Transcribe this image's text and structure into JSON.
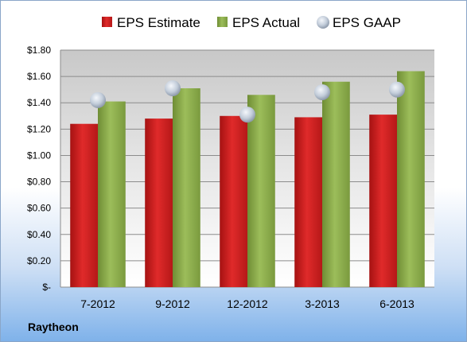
{
  "company": "Raytheon",
  "chart_data": {
    "type": "bar",
    "title": "",
    "xlabel": "",
    "ylabel": "",
    "categories": [
      "7-2012",
      "9-2012",
      "12-2012",
      "3-2013",
      "6-2013"
    ],
    "series": [
      {
        "name": "EPS Estimate",
        "type": "bar",
        "color": "#cc1f1f",
        "values": [
          1.24,
          1.28,
          1.3,
          1.29,
          1.31
        ]
      },
      {
        "name": "EPS Actual",
        "type": "bar",
        "color": "#8cab4a",
        "values": [
          1.41,
          1.51,
          1.46,
          1.56,
          1.64
        ]
      },
      {
        "name": "EPS GAAP",
        "type": "scatter",
        "color": "#b8c4d4",
        "values": [
          1.42,
          1.51,
          1.31,
          1.48,
          1.5
        ]
      }
    ],
    "ylim": [
      0,
      1.8
    ],
    "yticks": [
      0,
      0.2,
      0.4,
      0.6,
      0.8,
      1.0,
      1.2,
      1.4,
      1.6,
      1.8
    ],
    "ytick_labels": [
      "$-",
      "$0.20",
      "$0.40",
      "$0.60",
      "$0.80",
      "$1.00",
      "$1.20",
      "$1.40",
      "$1.60",
      "$1.80"
    ],
    "grid": true,
    "legend_position": "top"
  }
}
